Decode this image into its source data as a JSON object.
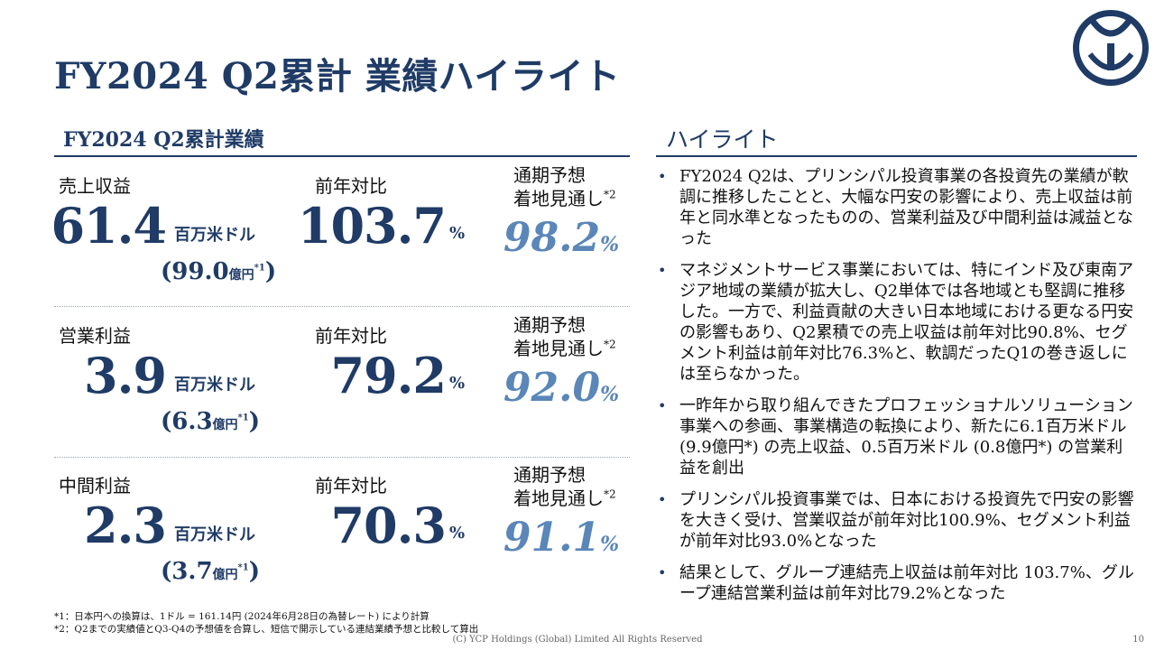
{
  "title": "FY2024 Q2累計 業績ハイライト",
  "left_section_title": "FY2024 Q2累計業績",
  "right_section_title": "ハイライト",
  "metrics": [
    {
      "label": "売上収益",
      "value": "61.4",
      "unit": "百万米ドル",
      "yen_value": "(99.0",
      "yen_unit": "億円",
      "yen_note": "*1",
      "yen_close": ")",
      "yoy_label": "前年対比",
      "yoy_value": "103.7",
      "yoy_unit": "%",
      "forecast_label_1": "通期予想",
      "forecast_label_2": "着地見通し",
      "forecast_note": "*2",
      "forecast_value": "98.2",
      "forecast_unit": "%"
    },
    {
      "label": "営業利益",
      "value": "3.9",
      "unit": "百万米ドル",
      "yen_value": "(6.3",
      "yen_unit": "億円",
      "yen_note": "*1",
      "yen_close": ")",
      "yoy_label": "前年対比",
      "yoy_value": "79.2",
      "yoy_unit": "%",
      "forecast_label_1": "通期予想",
      "forecast_label_2": "着地見通し",
      "forecast_note": "*2",
      "forecast_value": "92.0",
      "forecast_unit": "%"
    },
    {
      "label": "中間利益",
      "value": "2.3",
      "unit": "百万米ドル",
      "yen_value": "(3.7",
      "yen_unit": "億円",
      "yen_note": "*1",
      "yen_close": ")",
      "yoy_label": "前年対比",
      "yoy_value": "70.3",
      "yoy_unit": "%",
      "forecast_label_1": "通期予想",
      "forecast_label_2": "着地見通し",
      "forecast_note": "*2",
      "forecast_value": "91.1",
      "forecast_unit": "%"
    }
  ],
  "highlights": [
    "FY2024 Q2は、プリンシパル投資事業の各投資先の業績が軟調に推移したことと、大幅な円安の影響により、売上収益は前年と同水準となったものの、営業利益及び中間利益は減益となった",
    "マネジメントサービス事業においては、特にインド及び東南アジア地域の業績が拡大し、Q2単体では各地域とも堅調に推移した。一方で、利益貢献の大きい日本地域における更なる円安の影響もあり、Q2累積での売上収益は前年対比90.8%、セグメント利益は前年対比76.3%と、軟調だったQ1の巻き返しには至らなかった。",
    "一昨年から取り組んできたプロフェッショナルソリューション事業への参画、事業構造の転換により、新たに6.1百万米ドル (9.9億円*) の売上収益、0.5百万米ドル (0.8億円*) の営業利益を創出",
    "プリンシパル投資事業では、日本における投資先で円安の影響を大きく受け、営業収益が前年対比100.9%、セグメント利益が前年対比93.0%となった",
    "結果として、グループ連結売上収益は前年対比 103.7%、グループ連結営業利益は前年対比79.2%となった"
  ],
  "footnotes": [
    "*1：日本円への換算は、1ドル = 161.14円 (2024年6月28日の為替レート) により計算",
    "*2：Q2までの実績値とQ3-Q4の予想値を合算し、短信で開示している連結業績予想と比較して算出"
  ],
  "copyright": "(C) YCP Holdings (Global) Limited All Rights Reserved",
  "page_number": "10",
  "colors": {
    "navy": "#1f3b66",
    "forecast_blue": "#5a86b8"
  },
  "logo_icon": "ycp-logo-icon"
}
